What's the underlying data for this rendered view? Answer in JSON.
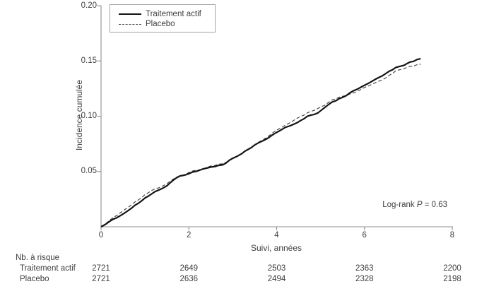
{
  "colors": {
    "solid_curve": "#141414",
    "dashed_curve": "#3a3a3a",
    "axis": "#8f8f8f",
    "text": "#3e3e3e",
    "legend_border": "#a3a3a3"
  },
  "chart_data": {
    "type": "line",
    "subtype": "cumulative-incidence-survival",
    "title": "",
    "xlabel": "Suivi, années",
    "ylabel": "Incidence cumulée",
    "xlim": [
      0,
      8
    ],
    "ylim": [
      0,
      0.2
    ],
    "grid": false,
    "legend_position": "top-left-inside",
    "xtick_values": [
      0,
      2,
      4,
      6,
      8
    ],
    "xtick_labels": [
      "0",
      "2",
      "4",
      "6",
      "8"
    ],
    "ytick_values": [
      0.2,
      0.15,
      0.1,
      0.05
    ],
    "ytick_labels": [
      "0.20",
      "0.15",
      "0.10",
      "0.05"
    ],
    "annotation": {
      "pre": "Log-rank ",
      "italic": "P",
      "post": " = 0.63"
    },
    "series": [
      {
        "name": "Traitement actif",
        "style": "solid",
        "points": [
          [
            0.0,
            0.0
          ],
          [
            0.2,
            0.005
          ],
          [
            0.35,
            0.008
          ],
          [
            0.52,
            0.012
          ],
          [
            0.7,
            0.017
          ],
          [
            0.84,
            0.021
          ],
          [
            1.0,
            0.026
          ],
          [
            1.16,
            0.03
          ],
          [
            1.3,
            0.033
          ],
          [
            1.5,
            0.037
          ],
          [
            1.64,
            0.042
          ],
          [
            1.8,
            0.046
          ],
          [
            2.0,
            0.048
          ],
          [
            2.15,
            0.05
          ],
          [
            2.3,
            0.052
          ],
          [
            2.5,
            0.054
          ],
          [
            2.77,
            0.056
          ],
          [
            3.0,
            0.062
          ],
          [
            3.2,
            0.066
          ],
          [
            3.5,
            0.074
          ],
          [
            3.7,
            0.078
          ],
          [
            3.98,
            0.085
          ],
          [
            4.2,
            0.09
          ],
          [
            4.46,
            0.094
          ],
          [
            4.7,
            0.1
          ],
          [
            4.94,
            0.103
          ],
          [
            5.1,
            0.108
          ],
          [
            5.27,
            0.113
          ],
          [
            5.5,
            0.117
          ],
          [
            5.75,
            0.123
          ],
          [
            6.0,
            0.128
          ],
          [
            6.23,
            0.133
          ],
          [
            6.5,
            0.139
          ],
          [
            6.71,
            0.144
          ],
          [
            6.9,
            0.146
          ],
          [
            7.04,
            0.149
          ],
          [
            7.28,
            0.152
          ]
        ]
      },
      {
        "name": "Placebo",
        "style": "dashed",
        "points": [
          [
            0.0,
            0.0
          ],
          [
            0.2,
            0.006
          ],
          [
            0.35,
            0.01
          ],
          [
            0.52,
            0.015
          ],
          [
            0.7,
            0.02
          ],
          [
            0.84,
            0.024
          ],
          [
            1.0,
            0.029
          ],
          [
            1.16,
            0.033
          ],
          [
            1.3,
            0.035
          ],
          [
            1.5,
            0.039
          ],
          [
            1.64,
            0.043
          ],
          [
            1.8,
            0.046
          ],
          [
            2.0,
            0.049
          ],
          [
            2.15,
            0.051
          ],
          [
            2.3,
            0.052
          ],
          [
            2.5,
            0.055
          ],
          [
            2.77,
            0.057
          ],
          [
            3.0,
            0.062
          ],
          [
            3.2,
            0.066
          ],
          [
            3.5,
            0.074
          ],
          [
            3.7,
            0.079
          ],
          [
            3.98,
            0.087
          ],
          [
            4.2,
            0.092
          ],
          [
            4.46,
            0.098
          ],
          [
            4.7,
            0.103
          ],
          [
            4.94,
            0.107
          ],
          [
            5.1,
            0.11
          ],
          [
            5.27,
            0.115
          ],
          [
            5.5,
            0.118
          ],
          [
            5.75,
            0.121
          ],
          [
            6.0,
            0.126
          ],
          [
            6.23,
            0.13
          ],
          [
            6.5,
            0.135
          ],
          [
            6.71,
            0.141
          ],
          [
            6.9,
            0.143
          ],
          [
            7.04,
            0.145
          ],
          [
            7.28,
            0.147
          ]
        ]
      }
    ],
    "risk_table": {
      "header": "Nb. à risque",
      "x": [
        0,
        2,
        4,
        6,
        8
      ],
      "rows": [
        {
          "label": "Traitement actif",
          "values": [
            "2721",
            "2649",
            "2503",
            "2363",
            "2200"
          ]
        },
        {
          "label": "Placebo",
          "values": [
            "2721",
            "2636",
            "2494",
            "2328",
            "2198"
          ]
        }
      ]
    }
  }
}
